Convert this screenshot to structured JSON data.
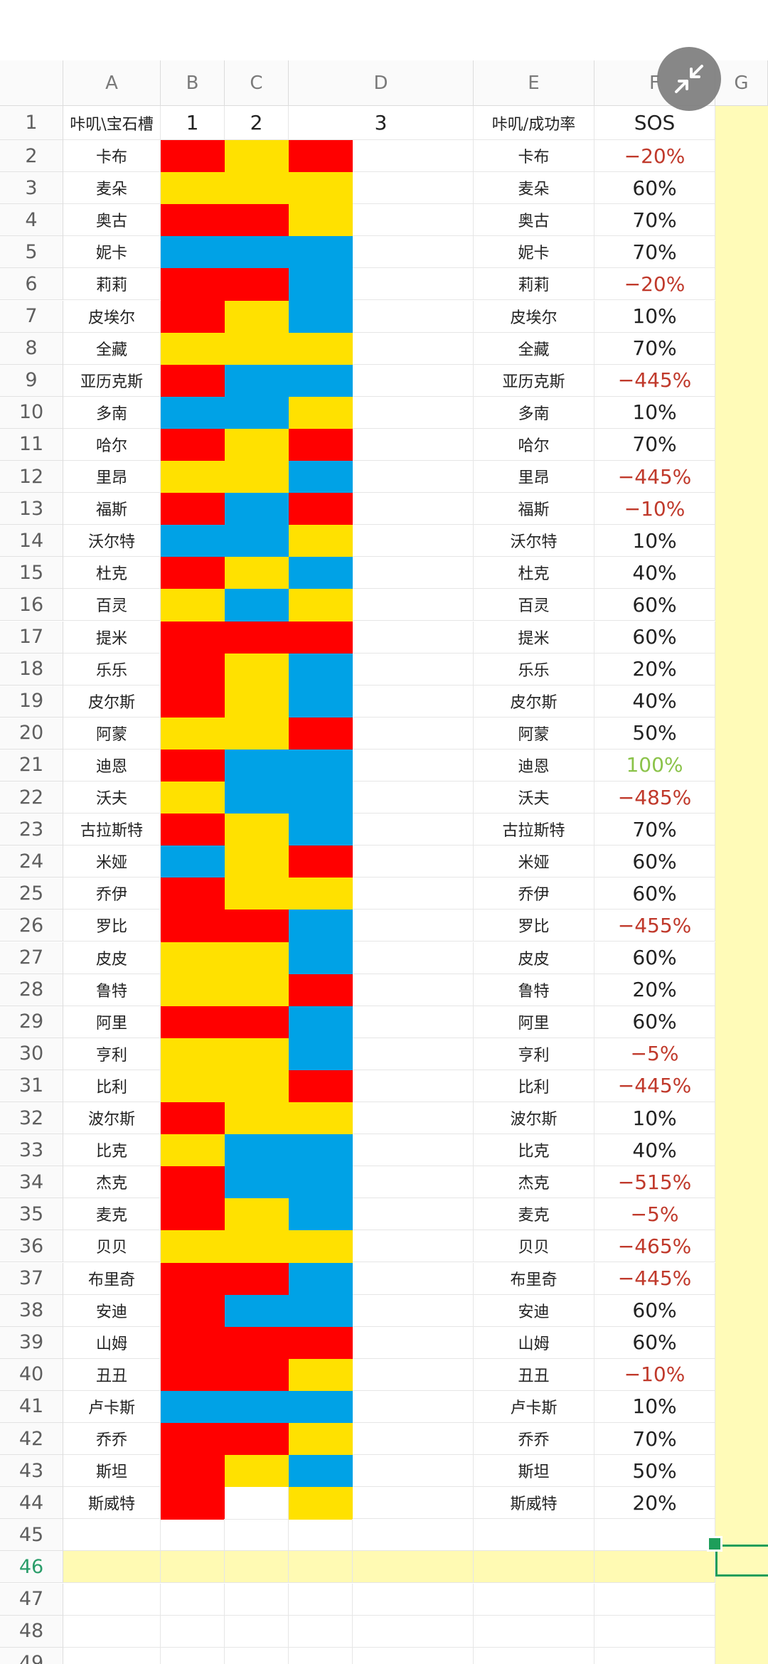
{
  "columns": [
    {
      "name": "column-header-a",
      "label": "A"
    },
    {
      "name": "column-header-b",
      "label": "B"
    },
    {
      "name": "column-header-c",
      "label": "C"
    },
    {
      "name": "column-header-d",
      "label": "D"
    },
    {
      "name": "column-header-e",
      "label": "E"
    },
    {
      "name": "column-header-f",
      "label": "F"
    },
    {
      "name": "column-header-g",
      "label": "G"
    }
  ],
  "header_row": {
    "number": "1",
    "a": "咔叽\\宝石槽",
    "b": "1",
    "c": "2",
    "d": "3",
    "f": "咔叽/成功率",
    "g": "SOS"
  },
  "colors": {
    "R": "#ff0000",
    "Y": "#ffe100",
    "B": "#00a2e6",
    "W": "#ffffff",
    "positive": "#222222",
    "negative": "#c0392b",
    "full": "#8bc34a",
    "highlight_row": "#fffab3",
    "selection": "#1e9e5a"
  },
  "rows": [
    {
      "num": "2",
      "name": "卡布",
      "gems": [
        "R",
        "Y",
        "R"
      ],
      "sos": "−20%",
      "tone": "negative"
    },
    {
      "num": "3",
      "name": "麦朵",
      "gems": [
        "Y",
        "Y",
        "Y"
      ],
      "sos": "60%",
      "tone": "positive"
    },
    {
      "num": "4",
      "name": "奥古",
      "gems": [
        "R",
        "R",
        "Y"
      ],
      "sos": "70%",
      "tone": "positive"
    },
    {
      "num": "5",
      "name": "妮卡",
      "gems": [
        "B",
        "B",
        "B"
      ],
      "sos": "70%",
      "tone": "positive"
    },
    {
      "num": "6",
      "name": "莉莉",
      "gems": [
        "R",
        "R",
        "B"
      ],
      "sos": "−20%",
      "tone": "negative"
    },
    {
      "num": "7",
      "name": "皮埃尔",
      "gems": [
        "R",
        "Y",
        "B"
      ],
      "sos": "10%",
      "tone": "positive"
    },
    {
      "num": "8",
      "name": "全藏",
      "gems": [
        "Y",
        "Y",
        "Y"
      ],
      "sos": "70%",
      "tone": "positive"
    },
    {
      "num": "9",
      "name": "亚历克斯",
      "gems": [
        "R",
        "B",
        "B"
      ],
      "sos": "−445%",
      "tone": "negative"
    },
    {
      "num": "10",
      "name": "多南",
      "gems": [
        "B",
        "B",
        "Y"
      ],
      "sos": "10%",
      "tone": "positive"
    },
    {
      "num": "11",
      "name": "哈尔",
      "gems": [
        "R",
        "Y",
        "R"
      ],
      "sos": "70%",
      "tone": "positive"
    },
    {
      "num": "12",
      "name": "里昂",
      "gems": [
        "Y",
        "Y",
        "B"
      ],
      "sos": "−445%",
      "tone": "negative"
    },
    {
      "num": "13",
      "name": "福斯",
      "gems": [
        "R",
        "B",
        "R"
      ],
      "sos": "−10%",
      "tone": "negative"
    },
    {
      "num": "14",
      "name": "沃尔特",
      "gems": [
        "B",
        "B",
        "Y"
      ],
      "sos": "10%",
      "tone": "positive"
    },
    {
      "num": "15",
      "name": "杜克",
      "gems": [
        "R",
        "Y",
        "B"
      ],
      "sos": "40%",
      "tone": "positive"
    },
    {
      "num": "16",
      "name": "百灵",
      "gems": [
        "Y",
        "B",
        "Y"
      ],
      "sos": "60%",
      "tone": "positive"
    },
    {
      "num": "17",
      "name": "提米",
      "gems": [
        "R",
        "R",
        "R"
      ],
      "sos": "60%",
      "tone": "positive"
    },
    {
      "num": "18",
      "name": "乐乐",
      "gems": [
        "R",
        "Y",
        "B"
      ],
      "sos": "20%",
      "tone": "positive"
    },
    {
      "num": "19",
      "name": "皮尔斯",
      "gems": [
        "R",
        "Y",
        "B"
      ],
      "sos": "40%",
      "tone": "positive"
    },
    {
      "num": "20",
      "name": "阿蒙",
      "gems": [
        "Y",
        "Y",
        "R"
      ],
      "sos": "50%",
      "tone": "positive"
    },
    {
      "num": "21",
      "name": "迪恩",
      "gems": [
        "R",
        "B",
        "B"
      ],
      "sos": "100%",
      "tone": "full"
    },
    {
      "num": "22",
      "name": "沃夫",
      "gems": [
        "Y",
        "B",
        "B"
      ],
      "sos": "−485%",
      "tone": "negative"
    },
    {
      "num": "23",
      "name": "古拉斯特",
      "gems": [
        "R",
        "Y",
        "B"
      ],
      "sos": "70%",
      "tone": "positive"
    },
    {
      "num": "24",
      "name": "米娅",
      "gems": [
        "B",
        "Y",
        "R"
      ],
      "sos": "60%",
      "tone": "positive"
    },
    {
      "num": "25",
      "name": "乔伊",
      "gems": [
        "R",
        "Y",
        "Y"
      ],
      "sos": "60%",
      "tone": "positive"
    },
    {
      "num": "26",
      "name": "罗比",
      "gems": [
        "R",
        "R",
        "B"
      ],
      "sos": "−455%",
      "tone": "negative"
    },
    {
      "num": "27",
      "name": "皮皮",
      "gems": [
        "Y",
        "Y",
        "B"
      ],
      "sos": "60%",
      "tone": "positive"
    },
    {
      "num": "28",
      "name": "鲁特",
      "gems": [
        "Y",
        "Y",
        "R"
      ],
      "sos": "20%",
      "tone": "positive"
    },
    {
      "num": "29",
      "name": "阿里",
      "gems": [
        "R",
        "R",
        "B"
      ],
      "sos": "60%",
      "tone": "positive"
    },
    {
      "num": "30",
      "name": "亨利",
      "gems": [
        "Y",
        "Y",
        "B"
      ],
      "sos": "−5%",
      "tone": "negative"
    },
    {
      "num": "31",
      "name": "比利",
      "gems": [
        "Y",
        "Y",
        "R"
      ],
      "sos": "−445%",
      "tone": "negative"
    },
    {
      "num": "32",
      "name": "波尔斯",
      "gems": [
        "R",
        "Y",
        "Y"
      ],
      "sos": "10%",
      "tone": "positive"
    },
    {
      "num": "33",
      "name": "比克",
      "gems": [
        "Y",
        "B",
        "B"
      ],
      "sos": "40%",
      "tone": "positive"
    },
    {
      "num": "34",
      "name": "杰克",
      "gems": [
        "R",
        "B",
        "B"
      ],
      "sos": "−515%",
      "tone": "negative"
    },
    {
      "num": "35",
      "name": "麦克",
      "gems": [
        "R",
        "Y",
        "B"
      ],
      "sos": "−5%",
      "tone": "negative"
    },
    {
      "num": "36",
      "name": "贝贝",
      "gems": [
        "Y",
        "Y",
        "Y"
      ],
      "sos": "−465%",
      "tone": "negative"
    },
    {
      "num": "37",
      "name": "布里奇",
      "gems": [
        "R",
        "R",
        "B"
      ],
      "sos": "−445%",
      "tone": "negative"
    },
    {
      "num": "38",
      "name": "安迪",
      "gems": [
        "R",
        "B",
        "B"
      ],
      "sos": "60%",
      "tone": "positive"
    },
    {
      "num": "39",
      "name": "山姆",
      "gems": [
        "R",
        "R",
        "R"
      ],
      "sos": "60%",
      "tone": "positive"
    },
    {
      "num": "40",
      "name": "丑丑",
      "gems": [
        "R",
        "R",
        "Y"
      ],
      "sos": "−10%",
      "tone": "negative"
    },
    {
      "num": "41",
      "name": "卢卡斯",
      "gems": [
        "B",
        "B",
        "B"
      ],
      "sos": "10%",
      "tone": "positive"
    },
    {
      "num": "42",
      "name": "乔乔",
      "gems": [
        "R",
        "R",
        "Y"
      ],
      "sos": "70%",
      "tone": "positive"
    },
    {
      "num": "43",
      "name": "斯坦",
      "gems": [
        "R",
        "Y",
        "B"
      ],
      "sos": "50%",
      "tone": "positive"
    },
    {
      "num": "44",
      "name": "斯威特",
      "gems": [
        "R",
        "W",
        "Y"
      ],
      "sos": "20%",
      "tone": "positive"
    }
  ],
  "empty_rows": [
    "45",
    "46",
    "47",
    "48",
    "49"
  ],
  "active_row": "46",
  "fab": {
    "icon": "collapse-arrows-icon"
  }
}
